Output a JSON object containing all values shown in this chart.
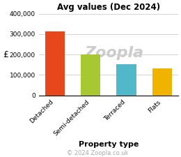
{
  "title": "Avg values (Dec 2024)",
  "categories": [
    "Detached",
    "Semi-detached",
    "Terraced",
    "Flats"
  ],
  "values": [
    315000,
    200000,
    153000,
    133000
  ],
  "bar_colors": [
    "#e8471c",
    "#a8c832",
    "#50b8c8",
    "#f0b400"
  ],
  "ylabel": "£",
  "xlabel": "Property type",
  "ylim": [
    0,
    400000
  ],
  "yticks": [
    0,
    100000,
    200000,
    300000,
    400000
  ],
  "ytick_labels": [
    "0",
    "100,000",
    "200,000",
    "300,000",
    "400,000"
  ],
  "copyright": "© 2024 Zoopla.co.uk",
  "background_color": "#ffffff",
  "watermark": "Zoopla",
  "watermark_color": "#cccccc"
}
